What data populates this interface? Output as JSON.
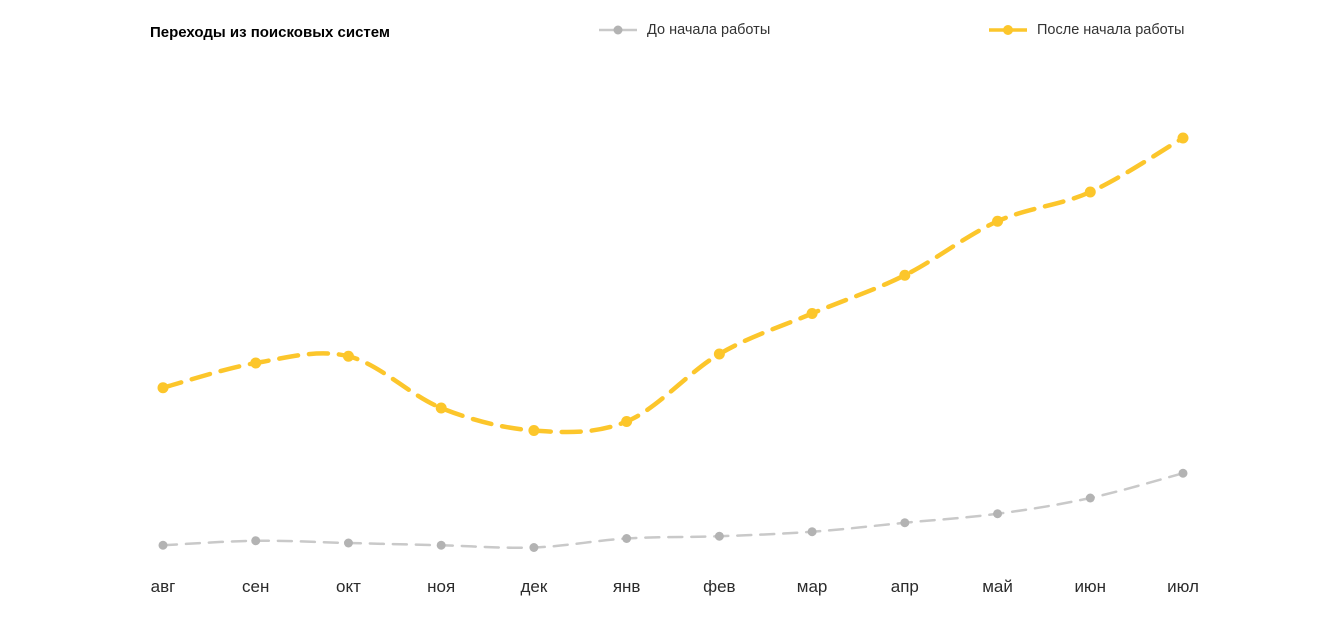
{
  "chart": {
    "title": "Переходы из поисковых систем"
  },
  "chart_data": {
    "type": "line",
    "title": "Переходы из поисковых систем",
    "categories": [
      "авг",
      "сен",
      "окт",
      "ноя",
      "дек",
      "янв",
      "фев",
      "мар",
      "апр",
      "май",
      "июн",
      "июл"
    ],
    "series": [
      {
        "name": "До начала работы",
        "color": "#c9c9c9",
        "marker_color": "#b3b3b3",
        "values": [
          5.5,
          6.5,
          6,
          5.5,
          5,
          7,
          7.5,
          8.5,
          10.5,
          12.5,
          16,
          21.5
        ]
      },
      {
        "name": "После начала работы",
        "color": "#fcc62b",
        "marker_color": "#fcc62b",
        "values": [
          40.5,
          46,
          47.5,
          36,
          31,
          33,
          48,
          57,
          65.5,
          77.5,
          84,
          96
        ]
      }
    ],
    "xlabel": "",
    "ylabel": "",
    "ylim": [
      0,
      100
    ],
    "grid": false,
    "legend_position": "top",
    "line_style": "dashed",
    "markers": true
  }
}
